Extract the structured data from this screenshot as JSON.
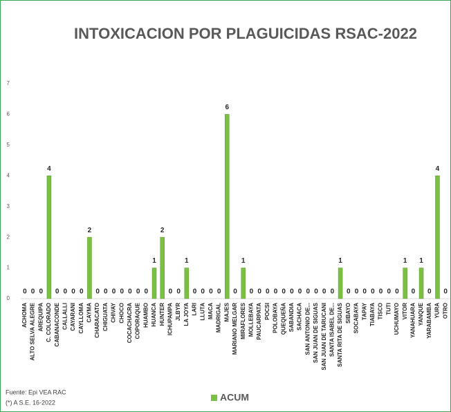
{
  "chart_data": {
    "type": "bar",
    "title": "INTOXICACION POR PLAGUICIDAS RSAC-2022",
    "categories": [
      "ACHOMA",
      "ALTO SELVA ALEGRE",
      "AREQUIPA",
      "C. COLORADO",
      "CABANACONDE",
      "CALLALLI",
      "CAYARANI",
      "CAYLLOMA",
      "CAYMA",
      "CHARACATO",
      "CHIGUATA",
      "CHIVAY",
      "CHOCO",
      "COCACHACRA",
      "COPORAQUE",
      "HUAMBO",
      "HUANCA",
      "HUNTER",
      "ICHUPAMPA",
      "JLBYR",
      "LA JOYA",
      "LARI",
      "LLUTA",
      "MACA",
      "MADRIGAL",
      "MAJES",
      "MARIANO MELGAR",
      "MIRAFLORES",
      "MOLLEBAYA",
      "PAUCARPATA",
      "POCSI",
      "POLOBAYA",
      "QUEQUEÑA",
      "SABANDIA",
      "SACHACA",
      "SAN ANTONIO DE...",
      "SAN JUAN DE SIGUAS",
      "SAN JUAN DE TARUCANI",
      "SANTA ISABEL DE...",
      "SANTA RITA DE SIGUAS",
      "SIBAYO",
      "SOCABAYA",
      "TAPAY",
      "TIABAYA",
      "TISCO",
      "TUTI",
      "UCHUMAYO",
      "VITOR",
      "YANAHUARA",
      "YANQUE",
      "YARABAMBA",
      "YURA",
      "OTRO"
    ],
    "series": [
      {
        "name": "ACUM",
        "color": "#7ac143",
        "values": [
          0,
          0,
          0,
          4,
          0,
          0,
          0,
          0,
          2,
          0,
          0,
          0,
          0,
          0,
          0,
          0,
          1,
          2,
          0,
          0,
          1,
          0,
          0,
          0,
          0,
          6,
          0,
          1,
          0,
          0,
          0,
          0,
          0,
          0,
          0,
          0,
          0,
          0,
          0,
          1,
          0,
          0,
          0,
          0,
          0,
          0,
          0,
          1,
          0,
          1,
          0,
          4,
          0
        ]
      }
    ],
    "ylim": [
      0,
      7
    ],
    "yticks": [
      0,
      1,
      2,
      3,
      4,
      5,
      6,
      7
    ],
    "source": "Fuente:  Epi VEA RAC",
    "note": "(*) A S.E. 16-2022"
  }
}
